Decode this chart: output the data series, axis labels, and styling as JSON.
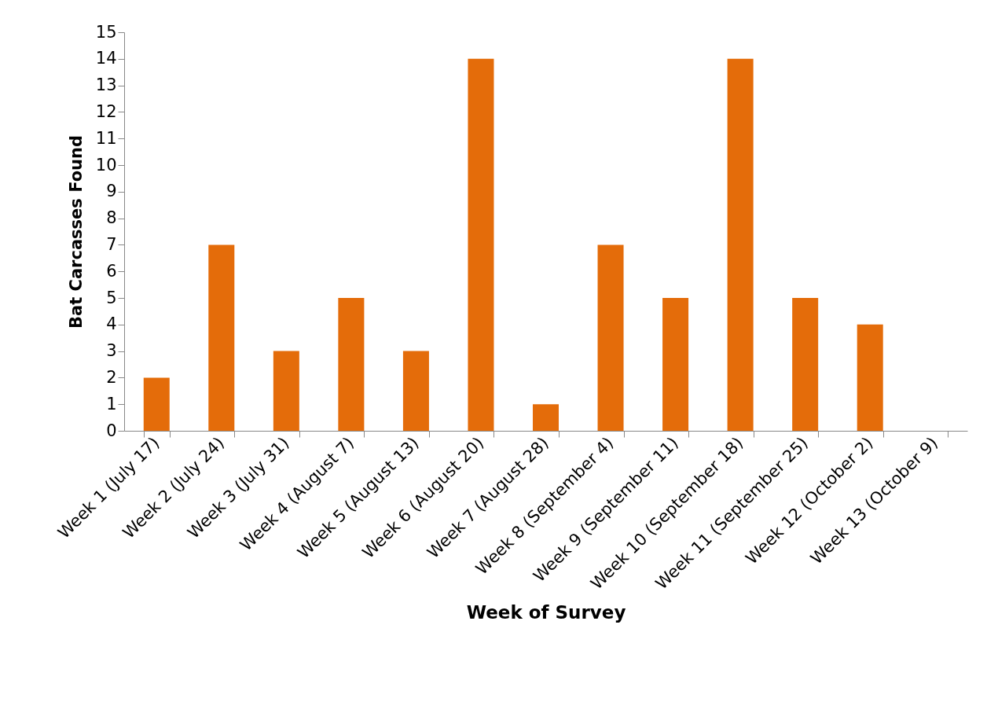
{
  "chart_data": {
    "type": "bar",
    "xlabel": "Week of Survey",
    "ylabel": "Bat Carcasses Found",
    "categories": [
      "Week 1 (July 17)",
      "Week 2 (July 24)",
      "Week 3 (July 31)",
      "Week 4 (August 7)",
      "Week 5 (August 13)",
      "Week 6 (August 20)",
      "Week 7 (August 28)",
      "Week 8 (September 4)",
      "Week 9 (September 11)",
      "Week 10 (September 18)",
      "Week 11 (September 25)",
      "Week 12 (October 2)",
      "Week 13 (October 9)"
    ],
    "values": [
      2,
      7,
      3,
      5,
      3,
      14,
      1,
      7,
      5,
      14,
      5,
      4,
      0
    ],
    "color": "#e46c0a",
    "ylim": [
      0,
      15
    ],
    "yticks": [
      0,
      1,
      2,
      3,
      4,
      5,
      6,
      7,
      8,
      9,
      10,
      11,
      12,
      13,
      14,
      15
    ],
    "grid": false
  }
}
